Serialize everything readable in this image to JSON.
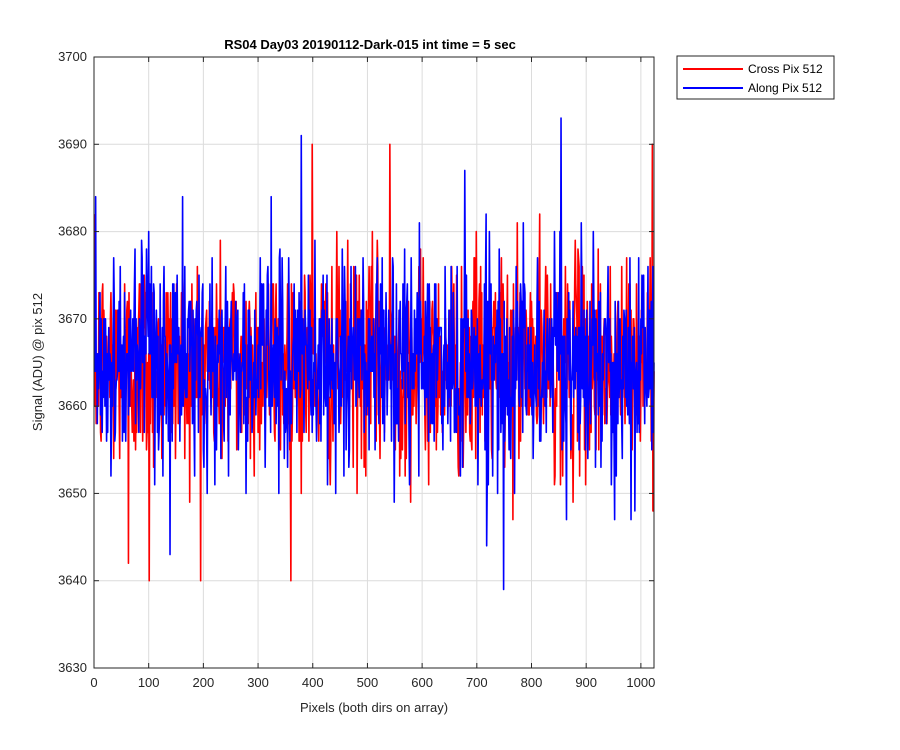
{
  "chart_data": {
    "type": "line",
    "title": "RS04 Day03 20190112-Dark-015 int time = 5 sec",
    "xlabel": "Pixels (both dirs on array)",
    "ylabel": "Signal (ADU) @ pix 512",
    "xlim": [
      0,
      1024
    ],
    "ylim": [
      3630,
      3700
    ],
    "xticks": [
      "0",
      "100",
      "200",
      "300",
      "400",
      "500",
      "600",
      "700",
      "800",
      "900",
      "1000"
    ],
    "yticks": [
      "3630",
      "3640",
      "3650",
      "3660",
      "3670",
      "3680",
      "3690",
      "3700"
    ],
    "grid": true,
    "legend_position": "outside-top-right",
    "series": [
      {
        "name": "Cross Pix 512",
        "color": "#ff0000",
        "mean": 3665,
        "noise_range": [
          3640,
          3690
        ],
        "visible_extremes": [
          {
            "x": 100,
            "y": 3640
          },
          {
            "x": 62,
            "y": 3642
          },
          {
            "x": 398,
            "y": 3690
          },
          {
            "x": 540,
            "y": 3690
          },
          {
            "x": 1020,
            "y": 3690
          },
          {
            "x": 1022,
            "y": 3648
          }
        ]
      },
      {
        "name": "Along Pix 512",
        "color": "#0000ff",
        "mean": 3665,
        "noise_range": [
          3639,
          3693
        ],
        "visible_extremes": [
          {
            "x": 2,
            "y": 3684
          },
          {
            "x": 378,
            "y": 3691
          },
          {
            "x": 748,
            "y": 3639
          },
          {
            "x": 853,
            "y": 3693
          },
          {
            "x": 138,
            "y": 3643
          }
        ]
      }
    ]
  }
}
